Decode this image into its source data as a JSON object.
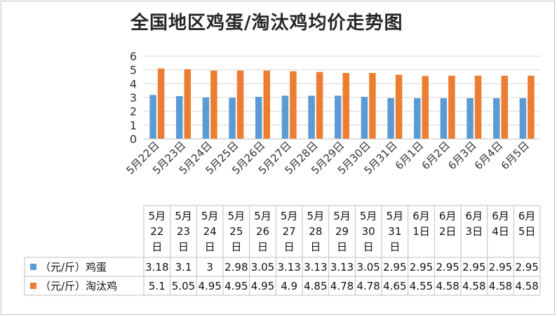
{
  "chart_data": {
    "type": "bar",
    "title": "全国地区鸡蛋/淘汰鸡均价走势图",
    "categories": [
      "5月22日",
      "5月23日",
      "5月24日",
      "5月25日",
      "5月26日",
      "5月27日",
      "5月28日",
      "5月29日",
      "5月30日",
      "5月31日",
      "6月1日",
      "6月2日",
      "6月3日",
      "6月4日",
      "6月5日"
    ],
    "series": [
      {
        "name": "（元/斤）鸡蛋",
        "color": "#5b9bd5",
        "values": [
          3.18,
          3.1,
          3,
          2.98,
          3.05,
          3.13,
          3.13,
          3.13,
          3.05,
          2.95,
          2.95,
          2.95,
          2.95,
          2.95,
          2.95
        ]
      },
      {
        "name": "（元/斤）淘汰鸡",
        "color": "#ed7d31",
        "values": [
          5.1,
          5.05,
          4.95,
          4.95,
          4.95,
          4.9,
          4.85,
          4.78,
          4.78,
          4.65,
          4.55,
          4.58,
          4.58,
          4.58,
          4.58
        ]
      }
    ],
    "table_headers": [
      [
        "5月",
        "22",
        "日"
      ],
      [
        "5月",
        "23",
        "日"
      ],
      [
        "5月",
        "24",
        "日"
      ],
      [
        "5月",
        "25",
        "日"
      ],
      [
        "5月",
        "26",
        "日"
      ],
      [
        "5月",
        "27",
        "日"
      ],
      [
        "5月",
        "28",
        "日"
      ],
      [
        "5月",
        "29",
        "日"
      ],
      [
        "5月",
        "30",
        "日"
      ],
      [
        "5月",
        "31",
        "日"
      ],
      [
        "6月",
        "1日"
      ],
      [
        "6月",
        "2日"
      ],
      [
        "6月",
        "3日"
      ],
      [
        "6月",
        "4日"
      ],
      [
        "6月",
        "5日"
      ]
    ],
    "table_values": [
      [
        "3.18",
        "3.1",
        "3",
        "2.98",
        "3.05",
        "3.13",
        "3.13",
        "3.13",
        "3.05",
        "2.95",
        "2.95",
        "2.95",
        "2.95",
        "2.95",
        "2.95"
      ],
      [
        "5.1",
        "5.05",
        "4.95",
        "4.95",
        "4.95",
        "4.9",
        "4.85",
        "4.78",
        "4.78",
        "4.65",
        "4.55",
        "4.58",
        "4.58",
        "4.58",
        "4.58"
      ]
    ],
    "yticks": [
      "0",
      "1",
      "2",
      "3",
      "4",
      "5",
      "6"
    ],
    "ylim": [
      0,
      6
    ],
    "grid": true,
    "legend": "data-table"
  }
}
